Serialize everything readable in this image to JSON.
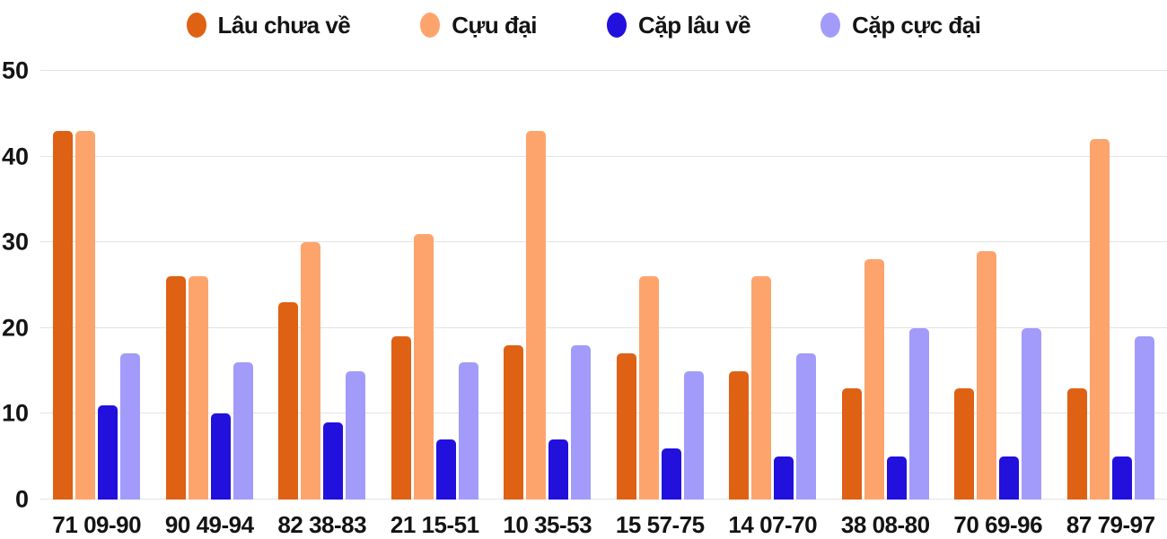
{
  "chart_data": {
    "type": "bar",
    "title": "",
    "xlabel": "",
    "ylabel": "",
    "categories": [
      "71 09-90",
      "90 49-94",
      "82 38-83",
      "21 15-51",
      "10 35-53",
      "15 57-75",
      "14 07-70",
      "38 08-80",
      "70 69-96",
      "87 79-97"
    ],
    "series": [
      {
        "name": "Lâu chưa về",
        "color": "#de6114",
        "values": [
          43,
          26,
          23,
          19,
          18,
          17,
          15,
          13,
          13,
          13
        ]
      },
      {
        "name": "Cựu đại",
        "color": "#fda46d",
        "values": [
          43,
          26,
          30,
          31,
          43,
          26,
          26,
          28,
          29,
          42
        ]
      },
      {
        "name": "Cặp lâu về",
        "color": "#2210dd",
        "values": [
          11,
          10,
          9,
          7,
          7,
          6,
          5,
          5,
          5,
          5
        ]
      },
      {
        "name": "Cặp cực đại",
        "color": "#a29bfa",
        "values": [
          17,
          16,
          15,
          16,
          18,
          15,
          17,
          20,
          20,
          19
        ]
      }
    ],
    "ylim": [
      0,
      50
    ],
    "yticks": [
      0,
      10,
      20,
      30,
      40,
      50
    ],
    "grid": true,
    "gridline_color": "#e3e3e3",
    "text_color": "#141414",
    "background_color": "#ffffff",
    "legend_position": "top"
  }
}
